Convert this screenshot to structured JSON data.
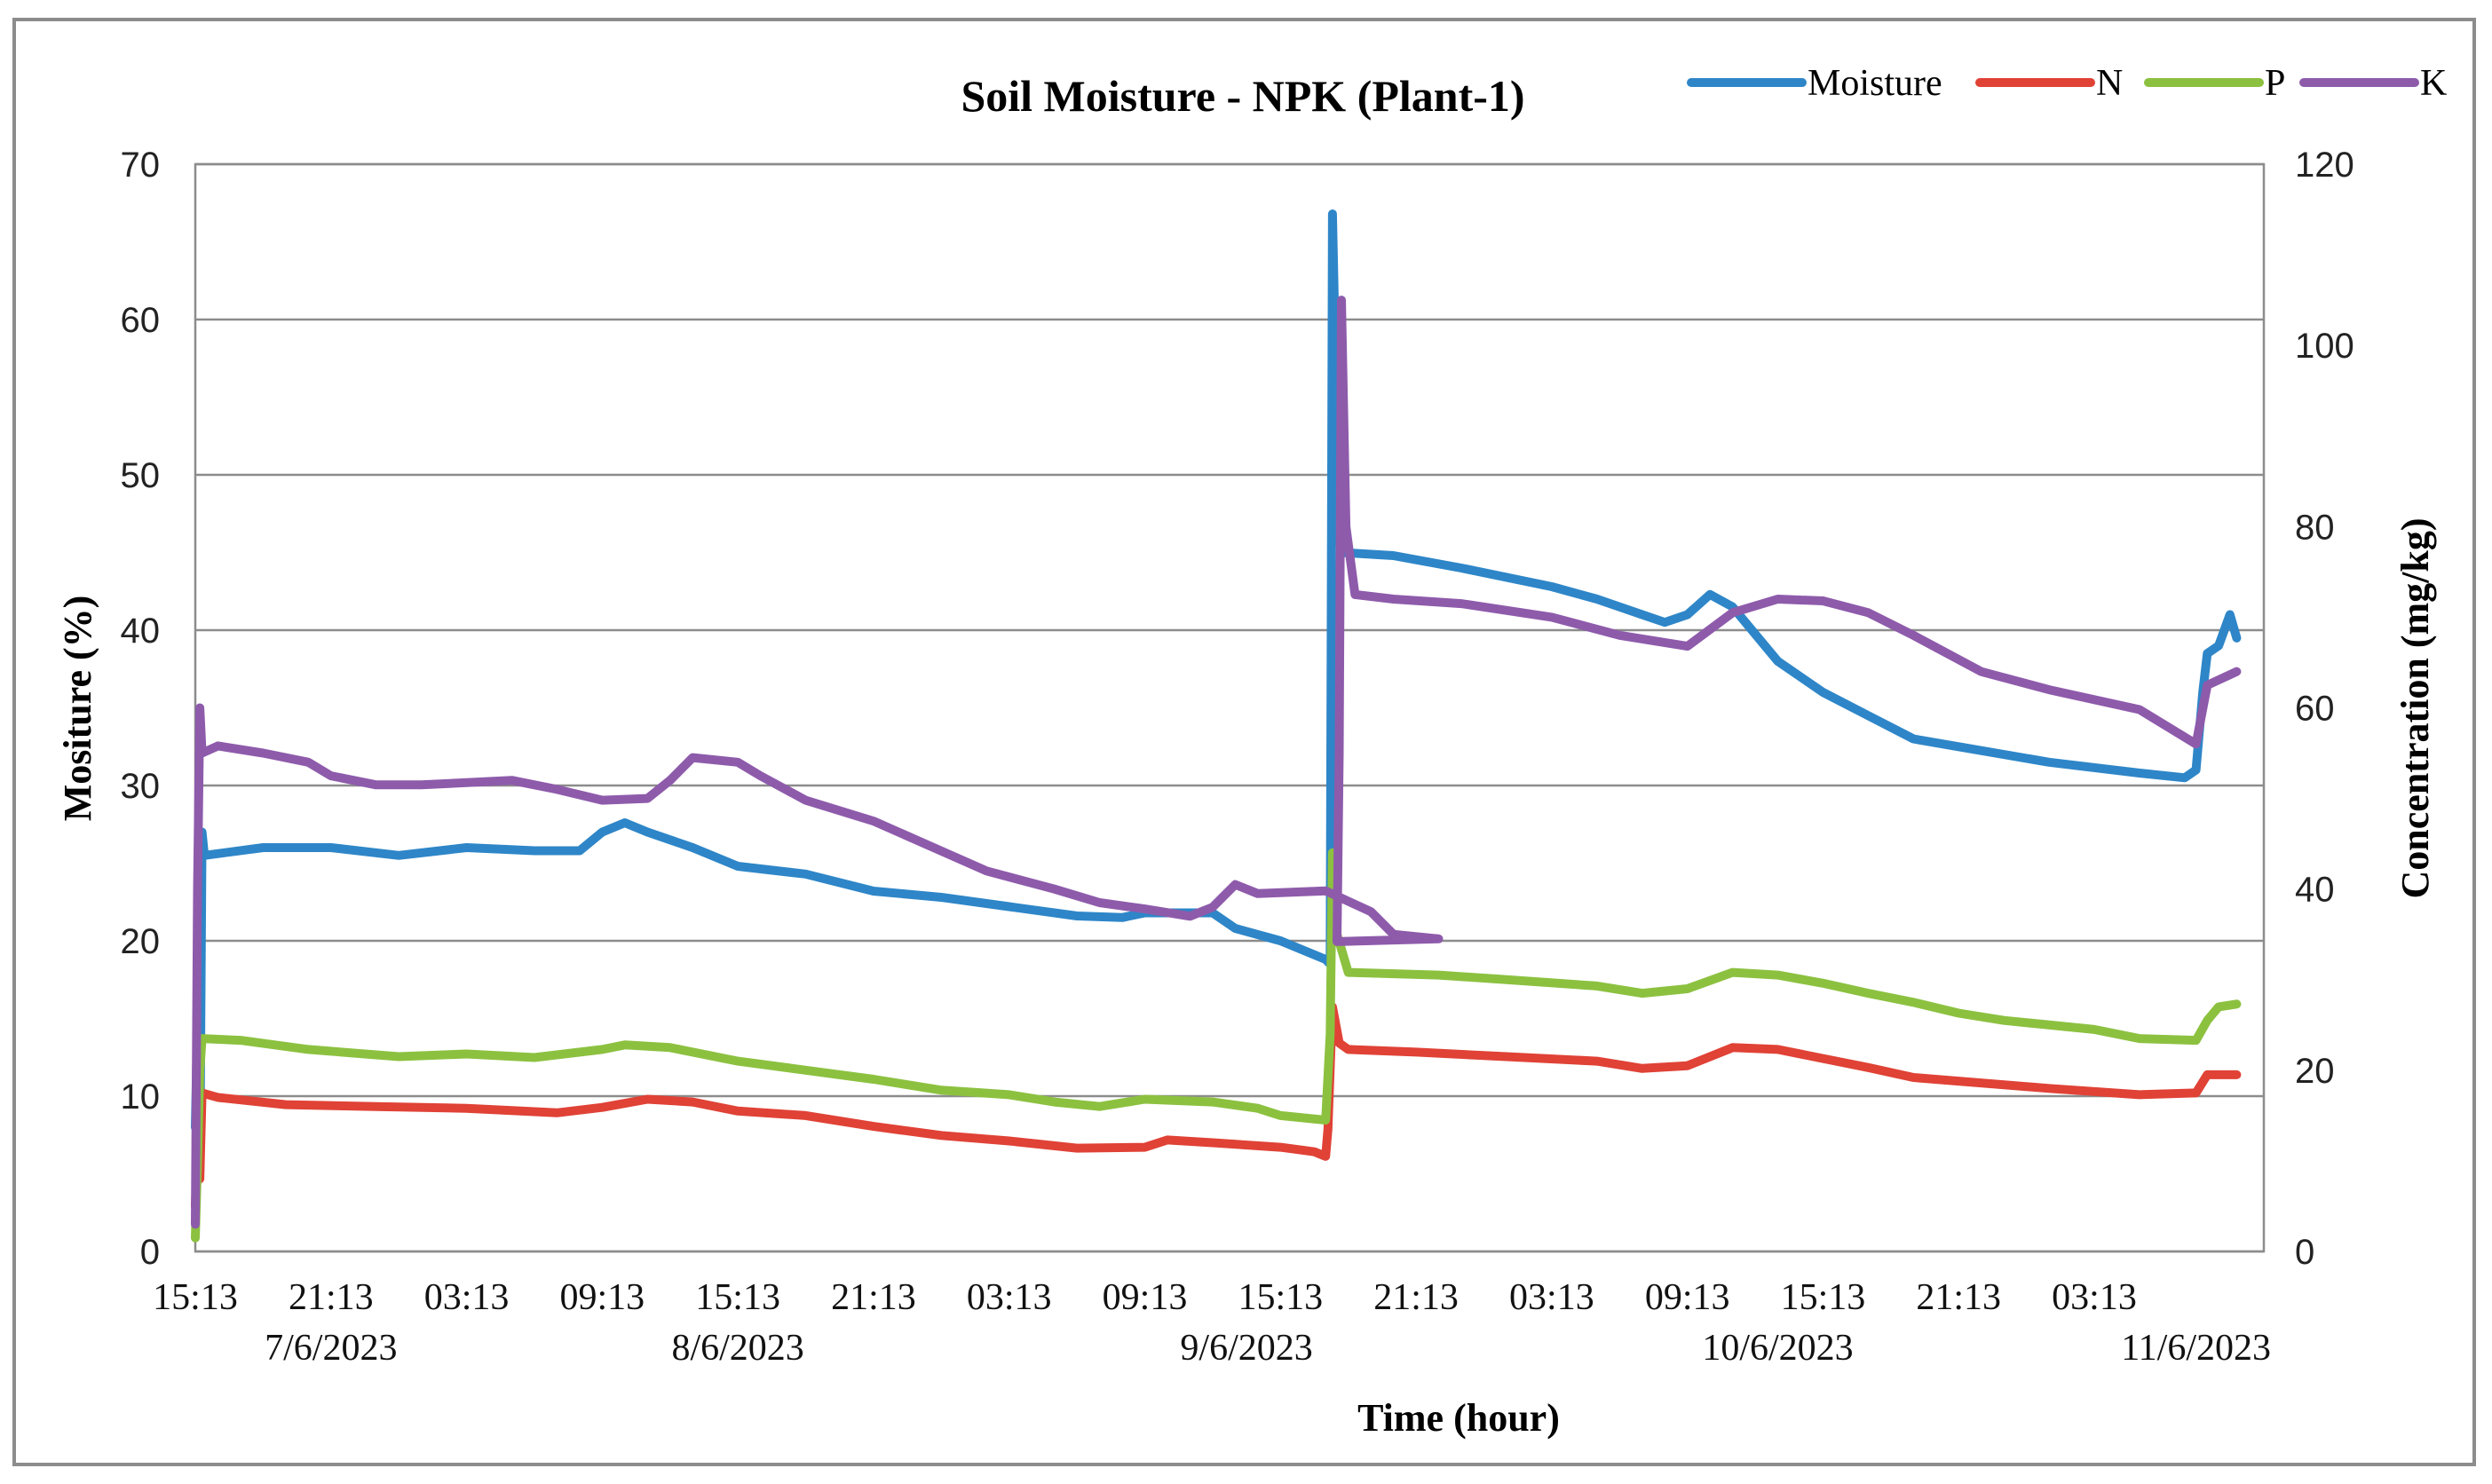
{
  "chart_data": {
    "type": "line",
    "title": "Soil Moisture - NPK (Plant-1)",
    "xlabel": "Time (hour)",
    "ylabel": "Mositure (%)",
    "y2label": "Concentration (mg/kg)",
    "ylim": [
      0,
      70
    ],
    "y2lim": [
      0,
      120
    ],
    "yticks": [
      "0",
      "10",
      "20",
      "30",
      "40",
      "50",
      "60",
      "70"
    ],
    "y2ticks": [
      "0",
      "20",
      "40",
      "60",
      "80",
      "100",
      "120"
    ],
    "xlim_hours": [
      0,
      91.5
    ],
    "xtick_labels": [
      "15:13",
      "21:13",
      "03:13",
      "09:13",
      "15:13",
      "21:13",
      "03:13",
      "09:13",
      "15:13",
      "21:13",
      "03:13",
      "09:13",
      "15:13",
      "21:13",
      "03:13"
    ],
    "date_labels": [
      {
        "text": "7/6/2023",
        "hour": 6
      },
      {
        "text": "8/6/2023",
        "hour": 24
      },
      {
        "text": "9/6/2023",
        "hour": 46.5
      },
      {
        "text": "10/6/2023",
        "hour": 70
      },
      {
        "text": "11/6/2023",
        "hour": 88.5
      }
    ],
    "grid": true,
    "legend_position": "top-right",
    "series": [
      {
        "name": "Moisture",
        "axis": "left",
        "color": "#2E86C8",
        "points": [
          [
            0,
            8
          ],
          [
            0.1,
            15
          ],
          [
            0.2,
            5
          ],
          [
            0.3,
            27
          ],
          [
            0.4,
            25.5
          ],
          [
            3,
            26
          ],
          [
            6,
            26
          ],
          [
            9,
            25.5
          ],
          [
            12,
            26
          ],
          [
            15,
            25.8
          ],
          [
            17,
            25.8
          ],
          [
            18,
            27
          ],
          [
            19,
            27.6
          ],
          [
            20,
            27
          ],
          [
            22,
            26
          ],
          [
            24,
            24.8
          ],
          [
            27,
            24.3
          ],
          [
            30,
            23.2
          ],
          [
            33,
            22.8
          ],
          [
            36,
            22.2
          ],
          [
            39,
            21.6
          ],
          [
            41,
            21.5
          ],
          [
            42,
            21.8
          ],
          [
            45,
            21.8
          ],
          [
            46,
            20.8
          ],
          [
            48,
            20
          ],
          [
            50,
            18.8
          ],
          [
            50.2,
            18.5
          ],
          [
            50.3,
            66.8
          ],
          [
            50.4,
            60
          ],
          [
            50.5,
            47
          ],
          [
            50.7,
            45
          ],
          [
            53,
            44.8
          ],
          [
            56,
            44
          ],
          [
            60,
            42.8
          ],
          [
            62,
            42
          ],
          [
            64,
            41
          ],
          [
            65,
            40.5
          ],
          [
            66,
            41
          ],
          [
            67,
            42.3
          ],
          [
            68,
            41.5
          ],
          [
            70,
            38
          ],
          [
            72,
            36
          ],
          [
            74,
            34.5
          ],
          [
            76,
            33
          ],
          [
            78,
            32.5
          ],
          [
            82,
            31.5
          ],
          [
            86,
            30.8
          ],
          [
            88,
            30.5
          ],
          [
            88.5,
            31
          ],
          [
            88.8,
            36
          ],
          [
            89,
            38.5
          ],
          [
            89.5,
            39
          ],
          [
            90,
            41
          ],
          [
            90.3,
            39.5
          ]
        ]
      },
      {
        "name": "N",
        "axis": "right",
        "color": "#E04236",
        "points": [
          [
            0,
            5
          ],
          [
            0.1,
            12
          ],
          [
            0.2,
            8
          ],
          [
            0.3,
            17.5
          ],
          [
            1,
            17
          ],
          [
            4,
            16.2
          ],
          [
            8,
            16
          ],
          [
            12,
            15.8
          ],
          [
            16,
            15.3
          ],
          [
            18,
            15.9
          ],
          [
            20,
            16.8
          ],
          [
            22,
            16.5
          ],
          [
            24,
            15.5
          ],
          [
            27,
            15
          ],
          [
            30,
            13.8
          ],
          [
            33,
            12.8
          ],
          [
            36,
            12.2
          ],
          [
            39,
            11.4
          ],
          [
            42,
            11.5
          ],
          [
            43,
            12.3
          ],
          [
            45,
            12
          ],
          [
            48,
            11.5
          ],
          [
            49.5,
            11
          ],
          [
            50,
            10.5
          ],
          [
            50.1,
            13.5
          ],
          [
            50.3,
            27
          ],
          [
            50.6,
            23
          ],
          [
            51,
            22.3
          ],
          [
            54,
            22
          ],
          [
            58,
            21.5
          ],
          [
            62,
            21
          ],
          [
            64,
            20.2
          ],
          [
            66,
            20.5
          ],
          [
            68,
            22.5
          ],
          [
            70,
            22.3
          ],
          [
            72,
            21.3
          ],
          [
            74,
            20.3
          ],
          [
            76,
            19.2
          ],
          [
            78,
            18.8
          ],
          [
            82,
            18
          ],
          [
            86,
            17.3
          ],
          [
            88.5,
            17.5
          ],
          [
            89,
            19.5
          ],
          [
            90.3,
            19.5
          ]
        ]
      },
      {
        "name": "P",
        "axis": "right",
        "color": "#8CC140",
        "points": [
          [
            0,
            1.5
          ],
          [
            0.1,
            10
          ],
          [
            0.2,
            20
          ],
          [
            0.3,
            23.5
          ],
          [
            2,
            23.3
          ],
          [
            5,
            22.3
          ],
          [
            9,
            21.5
          ],
          [
            12,
            21.8
          ],
          [
            15,
            21.4
          ],
          [
            18,
            22.3
          ],
          [
            19,
            22.8
          ],
          [
            21,
            22.5
          ],
          [
            24,
            21
          ],
          [
            27,
            20
          ],
          [
            30,
            19
          ],
          [
            33,
            17.8
          ],
          [
            36,
            17.3
          ],
          [
            38,
            16.5
          ],
          [
            40,
            16
          ],
          [
            42,
            16.8
          ],
          [
            45,
            16.5
          ],
          [
            47,
            15.8
          ],
          [
            48,
            15
          ],
          [
            50,
            14.5
          ],
          [
            50.2,
            24
          ],
          [
            50.3,
            44
          ],
          [
            50.5,
            35
          ],
          [
            51,
            30.8
          ],
          [
            55,
            30.5
          ],
          [
            58,
            30
          ],
          [
            62,
            29.3
          ],
          [
            64,
            28.5
          ],
          [
            66,
            29
          ],
          [
            68,
            30.8
          ],
          [
            70,
            30.5
          ],
          [
            72,
            29.6
          ],
          [
            74,
            28.5
          ],
          [
            76,
            27.5
          ],
          [
            78,
            26.3
          ],
          [
            80,
            25.5
          ],
          [
            84,
            24.5
          ],
          [
            86,
            23.5
          ],
          [
            88.5,
            23.3
          ],
          [
            89,
            25.5
          ],
          [
            89.5,
            27
          ],
          [
            90.3,
            27.3
          ]
        ]
      },
      {
        "name": "K",
        "axis": "right",
        "color": "#8E5BAB",
        "points": [
          [
            0,
            3
          ],
          [
            0.1,
            40
          ],
          [
            0.2,
            60
          ],
          [
            0.3,
            55
          ],
          [
            1,
            55.8
          ],
          [
            3,
            55
          ],
          [
            5,
            54
          ],
          [
            6,
            52.5
          ],
          [
            8,
            51.5
          ],
          [
            10,
            51.5
          ],
          [
            14,
            52
          ],
          [
            16,
            51
          ],
          [
            18,
            49.8
          ],
          [
            20,
            50
          ],
          [
            21,
            52
          ],
          [
            22,
            54.5
          ],
          [
            24,
            54
          ],
          [
            25,
            52.5
          ],
          [
            27,
            49.8
          ],
          [
            30,
            47.5
          ],
          [
            33,
            44.2
          ],
          [
            35,
            42
          ],
          [
            38,
            40
          ],
          [
            40,
            38.5
          ],
          [
            42,
            37.8
          ],
          [
            44,
            37
          ],
          [
            45,
            38
          ],
          [
            46,
            40.5
          ],
          [
            47,
            39.5
          ],
          [
            50,
            39.8
          ],
          [
            52,
            37.5
          ],
          [
            53,
            35
          ],
          [
            55,
            34.5
          ],
          [
            50.5,
            34.2
          ],
          [
            50.6,
            55
          ],
          [
            50.7,
            105
          ],
          [
            50.9,
            80
          ],
          [
            51.3,
            72.5
          ],
          [
            53,
            72
          ],
          [
            56,
            71.5
          ],
          [
            60,
            70
          ],
          [
            63,
            68
          ],
          [
            66,
            66.8
          ],
          [
            68,
            70.5
          ],
          [
            70,
            72
          ],
          [
            72,
            71.8
          ],
          [
            74,
            70.5
          ],
          [
            76,
            68
          ],
          [
            79,
            64
          ],
          [
            82,
            62
          ],
          [
            86,
            59.8
          ],
          [
            88.5,
            56
          ],
          [
            89,
            62.5
          ],
          [
            90.3,
            64
          ]
        ]
      }
    ]
  }
}
